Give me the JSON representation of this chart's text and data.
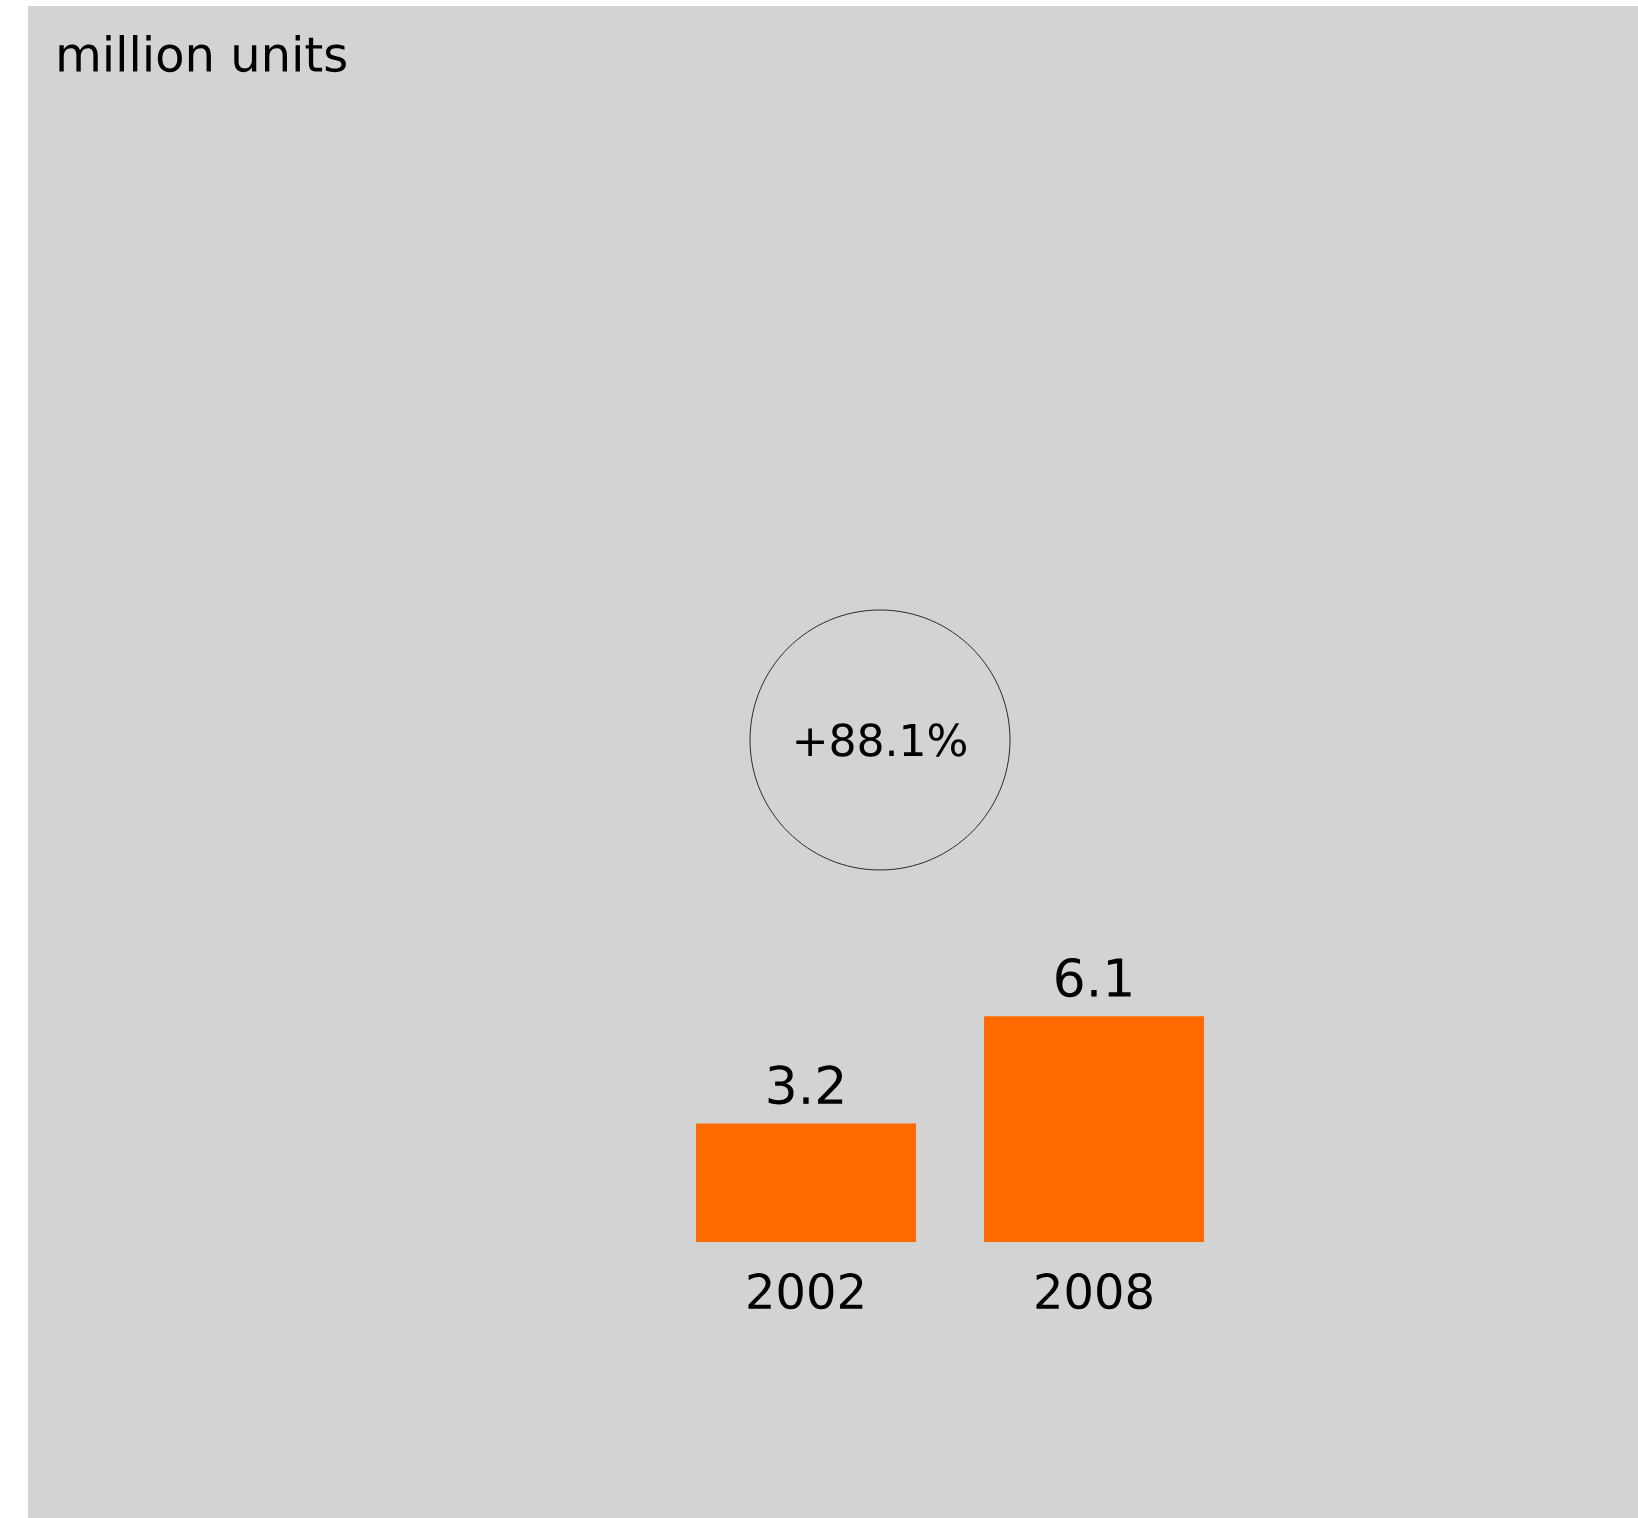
{
  "chart_data": {
    "type": "bar",
    "categories": [
      "2002",
      "2008"
    ],
    "values": [
      3.2,
      6.1
    ],
    "color": "#ff6a00",
    "data_labels": true,
    "annotations": [
      "million units",
      "+88.1%"
    ]
  }
}
